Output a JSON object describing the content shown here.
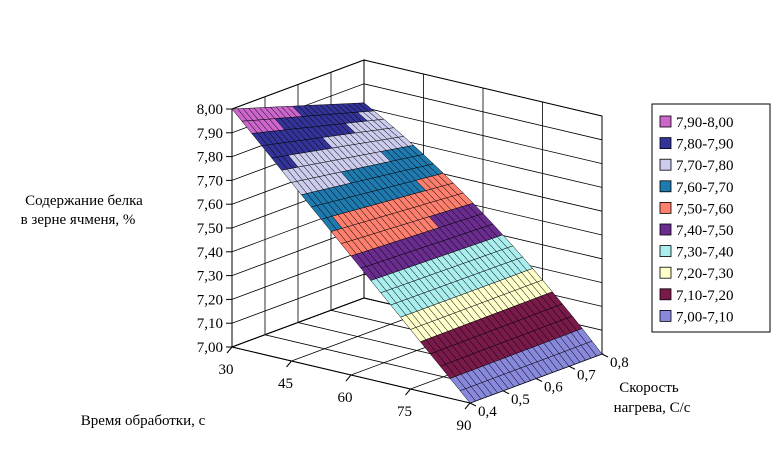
{
  "chart_data": {
    "type": "surface",
    "zlabel_lines": [
      "Содержание белка",
      "в зерне ячменя, %"
    ],
    "xlabel": "Время обработки, с",
    "ylabel_lines": [
      "Скорость",
      "нагрева, С/с"
    ],
    "z_ticks": [
      "7,00",
      "7,10",
      "7,20",
      "7,30",
      "7,40",
      "7,50",
      "7,60",
      "7,70",
      "7,80",
      "7,90",
      "8,00"
    ],
    "zlim": [
      7.0,
      8.0
    ],
    "x_ticks": [
      "30",
      "45",
      "60",
      "75",
      "90"
    ],
    "x_values": [
      30,
      45,
      60,
      75,
      90
    ],
    "y_ticks": [
      "0,4",
      "0,5",
      "0,6",
      "0,7",
      "0,8"
    ],
    "y_values": [
      0.4,
      0.5,
      0.6,
      0.7,
      0.8
    ],
    "legend": [
      {
        "label": "7,90-8,00",
        "color": "#cc66cc"
      },
      {
        "label": "7,80-7,90",
        "color": "#333399"
      },
      {
        "label": "7,70-7,80",
        "color": "#ccccee"
      },
      {
        "label": "7,60-7,70",
        "color": "#1f7ab0"
      },
      {
        "label": "7,50-7,60",
        "color": "#ff7f6e"
      },
      {
        "label": "7,40-7,50",
        "color": "#6a2c8f"
      },
      {
        "label": "7,30-7,40",
        "color": "#aaeeee"
      },
      {
        "label": "7,20-7,30",
        "color": "#ffffcc"
      },
      {
        "label": "7,10-7,20",
        "color": "#7a1a4a"
      },
      {
        "label": "7,00-7,10",
        "color": "#8888dd"
      }
    ]
  }
}
